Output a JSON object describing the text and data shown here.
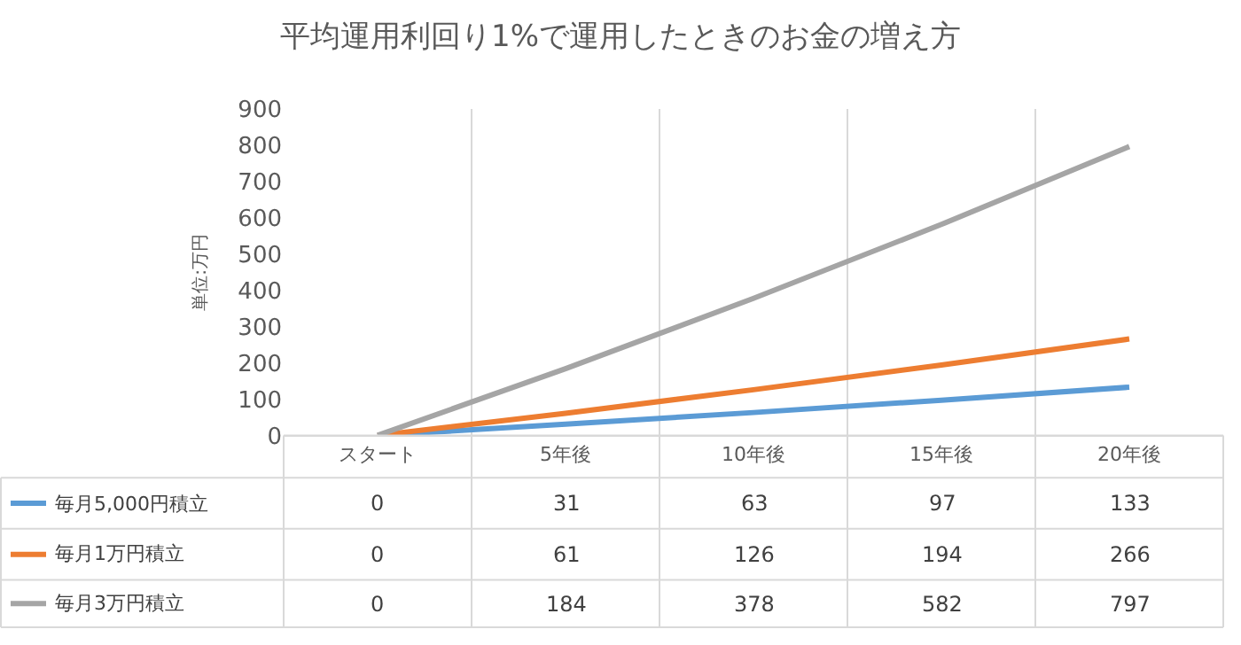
{
  "chart_data": {
    "type": "line",
    "title": "平均運用利回り1%で運用したときのお金の増え方",
    "ylabel": "単位:万円",
    "categories": [
      "スタート",
      "5年後",
      "10年後",
      "15年後",
      "20年後"
    ],
    "series": [
      {
        "name": "毎月5,000円積立",
        "color": "#5b9bd5",
        "values": [
          0,
          31,
          63,
          97,
          133
        ]
      },
      {
        "name": "毎月1万円積立",
        "color": "#ed7d31",
        "values": [
          0,
          61,
          126,
          194,
          266
        ]
      },
      {
        "name": "毎月3万円積立",
        "color": "#a5a5a5",
        "values": [
          0,
          184,
          378,
          582,
          797
        ]
      }
    ],
    "ylim": [
      0,
      900
    ],
    "yticks": [
      0,
      100,
      200,
      300,
      400,
      500,
      600,
      700,
      800,
      900
    ],
    "grid": "x",
    "data_labels": true,
    "legend": "bottom left",
    "marker": "none",
    "line_style": "solid"
  }
}
